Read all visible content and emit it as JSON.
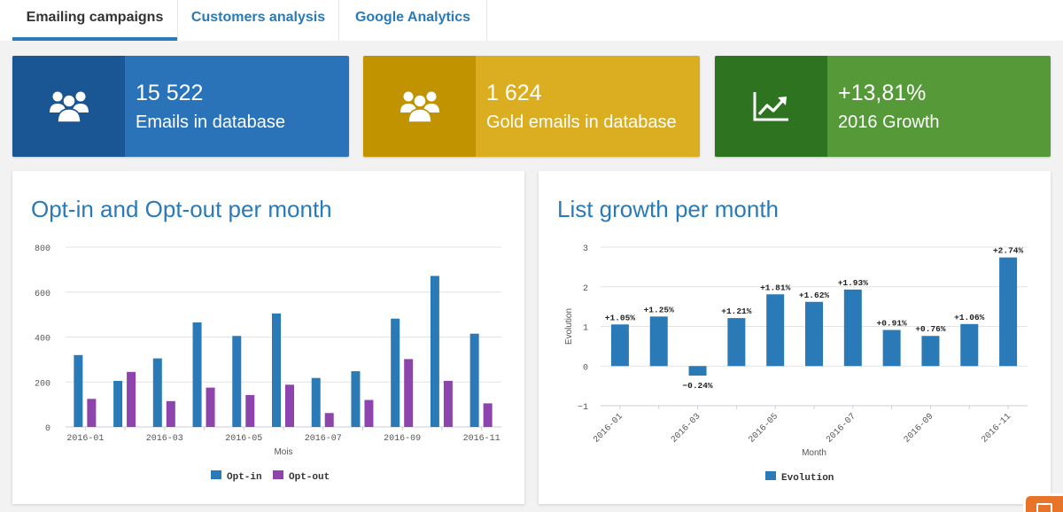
{
  "tabs": [
    {
      "label": "Emailing campaigns",
      "active": true
    },
    {
      "label": "Customers analysis",
      "active": false
    },
    {
      "label": "Google Analytics",
      "active": false
    }
  ],
  "kpis": [
    {
      "value": "15 522",
      "label": "Emails in database",
      "icon": "users-icon",
      "main_color": "#2a73b8",
      "icon_bg": "#1a5594"
    },
    {
      "value": "1 624",
      "label": "Gold emails in database",
      "icon": "users-icon",
      "main_color": "#dbae21",
      "icon_bg": "#c29300"
    },
    {
      "value": "+13,81%",
      "label": "2016 Growth",
      "icon": "trending-up-icon",
      "main_color": "#559939",
      "icon_bg": "#2e7420"
    }
  ],
  "charts": {
    "optin": {
      "title": "Opt-in and Opt-out per month",
      "chart_data": {
        "type": "bar",
        "categories": [
          "2016-01",
          "2016-02",
          "2016-03",
          "2016-04",
          "2016-05",
          "2016-06",
          "2016-07",
          "2016-08",
          "2016-09",
          "2016-10",
          "2016-11"
        ],
        "x_tick_labels": [
          "2016-01",
          "",
          "2016-03",
          "",
          "2016-05",
          "",
          "2016-07",
          "",
          "2016-09",
          "",
          "2016-11"
        ],
        "series": [
          {
            "name": "Opt-in",
            "color": "#2a7ab8",
            "values": [
              320,
              205,
              305,
              465,
              405,
              505,
              218,
              248,
              482,
              672,
              415
            ]
          },
          {
            "name": "Opt-out",
            "color": "#8e44ad",
            "values": [
              125,
              245,
              115,
              175,
              142,
              188,
              62,
              120,
              302,
              205,
              105
            ]
          }
        ],
        "xlabel": "Mois",
        "ylabel": "",
        "ylim": [
          0,
          800
        ],
        "yticks": [
          0,
          200,
          400,
          600,
          800
        ],
        "grid": true,
        "legend": "bottom-center"
      }
    },
    "growth": {
      "title": "List growth per month",
      "chart_data": {
        "type": "bar",
        "categories": [
          "2016-01",
          "2016-02",
          "2016-03",
          "2016-04",
          "2016-05",
          "2016-06",
          "2016-07",
          "2016-08",
          "2016-09",
          "2016-10",
          "2016-11"
        ],
        "x_tick_labels": [
          "2016-01",
          "",
          "2016-03",
          "",
          "2016-05",
          "",
          "2016-07",
          "",
          "2016-09",
          "",
          "2016-11"
        ],
        "series": [
          {
            "name": "Evolution",
            "color": "#2a7ab8",
            "values": [
              1.05,
              1.25,
              -0.24,
              1.21,
              1.81,
              1.62,
              1.93,
              0.91,
              0.76,
              1.06,
              2.74
            ]
          }
        ],
        "data_labels": [
          "+1.05%",
          "+1.25%",
          "−0.24%",
          "+1.21%",
          "+1.81%",
          "+1.62%",
          "+1.93%",
          "+0.91%",
          "+0.76%",
          "+1.06%",
          "+2.74%"
        ],
        "xlabel": "Month",
        "ylabel": "Evolution",
        "ylim": [
          -1,
          3
        ],
        "yticks": [
          -1,
          0,
          1,
          2,
          3
        ],
        "yticklabels": [
          "−1",
          "0",
          "1",
          "2",
          "3"
        ],
        "grid": true,
        "legend": "bottom-center"
      }
    }
  }
}
